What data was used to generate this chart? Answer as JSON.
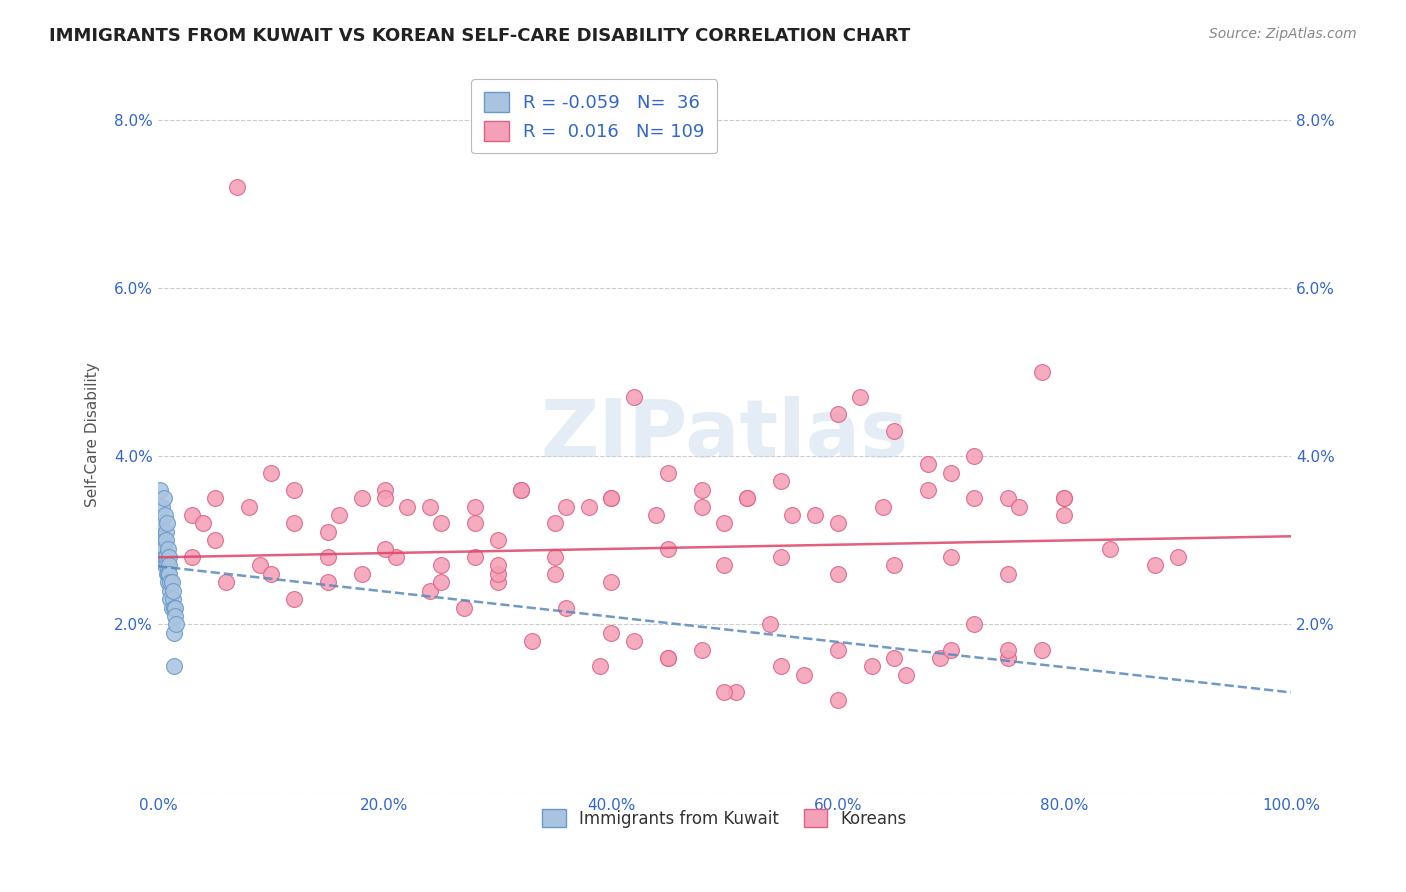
{
  "title": "IMMIGRANTS FROM KUWAIT VS KOREAN SELF-CARE DISABILITY CORRELATION CHART",
  "source": "Source: ZipAtlas.com",
  "ylabel": "Self-Care Disability",
  "xlim": [
    0,
    100
  ],
  "ylim": [
    0,
    8.5
  ],
  "yticks": [
    0,
    2,
    4,
    6,
    8
  ],
  "ytick_labels": [
    "",
    "2.0%",
    "4.0%",
    "6.0%",
    "8.0%"
  ],
  "xticks": [
    0,
    20,
    40,
    60,
    80,
    100
  ],
  "xtick_labels": [
    "0.0%",
    "20.0%",
    "40.0%",
    "60.0%",
    "80.0%",
    "100.0%"
  ],
  "kuwait_color": "#aac4e0",
  "korean_color": "#f4a0b8",
  "kuwait_edge": "#6699cc",
  "korean_edge": "#e06080",
  "trend_kuwait_color": "#5588bb",
  "trend_korean_color": "#dd4466",
  "background_color": "#ffffff",
  "grid_color": "#cccccc",
  "title_fontsize": 13,
  "watermark": "ZIPatlas",
  "kuwait_points_x": [
    0.2,
    0.3,
    0.3,
    0.4,
    0.4,
    0.5,
    0.5,
    0.5,
    0.6,
    0.6,
    0.6,
    0.7,
    0.7,
    0.7,
    0.8,
    0.8,
    0.8,
    0.9,
    0.9,
    0.9,
    1.0,
    1.0,
    1.0,
    1.1,
    1.1,
    1.1,
    1.2,
    1.2,
    1.3,
    1.3,
    1.4,
    1.4,
    1.5,
    1.5,
    1.6,
    1.4
  ],
  "kuwait_points_y": [
    3.6,
    3.1,
    3.2,
    3.4,
    2.9,
    3.5,
    3.0,
    2.9,
    3.3,
    2.8,
    2.7,
    3.1,
    3.0,
    2.8,
    3.2,
    2.6,
    2.7,
    2.9,
    2.5,
    2.6,
    2.8,
    2.7,
    2.6,
    2.4,
    2.3,
    2.5,
    2.2,
    2.5,
    2.3,
    2.4,
    2.2,
    1.9,
    2.2,
    2.1,
    2.0,
    1.5
  ],
  "korean_points_x": [
    3,
    5,
    7,
    10,
    12,
    15,
    18,
    20,
    22,
    25,
    28,
    30,
    32,
    35,
    38,
    40,
    42,
    45,
    48,
    50,
    52,
    55,
    58,
    60,
    62,
    65,
    68,
    70,
    72,
    75,
    78,
    80,
    3,
    6,
    9,
    12,
    15,
    18,
    21,
    24,
    27,
    30,
    33,
    36,
    39,
    42,
    45,
    48,
    51,
    54,
    57,
    60,
    63,
    66,
    69,
    72,
    75,
    78,
    4,
    8,
    12,
    16,
    20,
    24,
    28,
    32,
    36,
    40,
    44,
    48,
    52,
    56,
    60,
    64,
    68,
    72,
    76,
    80,
    84,
    88,
    90,
    5,
    10,
    15,
    20,
    25,
    30,
    35,
    40,
    45,
    50,
    55,
    60,
    65,
    70,
    75,
    30,
    25,
    28,
    35,
    40,
    45,
    50,
    55,
    60,
    65,
    70,
    75,
    80
  ],
  "korean_points_y": [
    3.3,
    3.5,
    7.2,
    3.8,
    3.2,
    3.1,
    3.5,
    3.6,
    3.4,
    3.2,
    3.4,
    3.0,
    3.6,
    3.2,
    3.4,
    3.5,
    4.7,
    3.8,
    3.6,
    3.2,
    3.5,
    3.7,
    3.3,
    4.5,
    4.7,
    4.3,
    3.9,
    3.8,
    4.0,
    3.5,
    5.0,
    3.5,
    2.8,
    2.5,
    2.7,
    2.3,
    2.5,
    2.6,
    2.8,
    2.4,
    2.2,
    2.5,
    1.8,
    2.2,
    1.5,
    1.8,
    1.6,
    1.7,
    1.2,
    2.0,
    1.4,
    1.1,
    1.5,
    1.4,
    1.6,
    2.0,
    1.6,
    1.7,
    3.2,
    3.4,
    3.6,
    3.3,
    3.5,
    3.4,
    3.2,
    3.6,
    3.4,
    3.5,
    3.3,
    3.4,
    3.5,
    3.3,
    3.2,
    3.4,
    3.6,
    3.5,
    3.4,
    3.3,
    2.9,
    2.7,
    2.8,
    3.0,
    2.6,
    2.8,
    2.9,
    2.7,
    2.6,
    2.8,
    2.5,
    2.9,
    2.7,
    2.8,
    2.6,
    2.7,
    2.8,
    2.6,
    2.7,
    2.5,
    2.8,
    2.6,
    1.9,
    1.6,
    1.2,
    1.5,
    1.7,
    1.6,
    1.7,
    1.7,
    3.5
  ]
}
